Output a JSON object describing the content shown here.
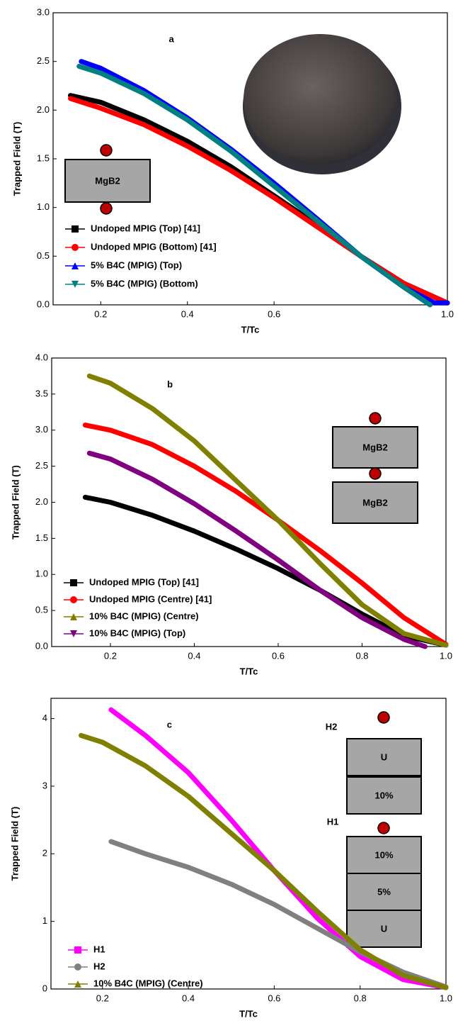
{
  "chart_data": [
    {
      "type": "line",
      "label": "a",
      "xlabel": "T/Tc",
      "ylabel": "Trapped Field (T)",
      "xlim": [
        0.09,
        1.0
      ],
      "ylim": [
        0,
        3.0
      ],
      "xticks": [
        0.2,
        0.4,
        0.6,
        {
          "value": 1.0,
          "label": "1.0"
        }
      ],
      "yticks": [
        {
          "value": 0,
          "label": "0.0"
        },
        0.5,
        {
          "value": 1,
          "label": "1.0"
        },
        1.5,
        {
          "value": 2,
          "label": "2.0"
        },
        2.5,
        {
          "value": 3,
          "label": "3.0"
        }
      ],
      "legend": "lower left",
      "inset_text": [
        "MgB2"
      ],
      "series": [
        {
          "name": "Undoped MPIG (Top) [41]",
          "color": "#000000",
          "marker": "square",
          "x": [
            0.13,
            0.2,
            0.3,
            0.4,
            0.5,
            0.6,
            0.7,
            0.8,
            0.9,
            1.0
          ],
          "values": [
            2.15,
            2.08,
            1.9,
            1.68,
            1.42,
            1.12,
            0.82,
            0.5,
            0.22,
            0.02
          ]
        },
        {
          "name": "Undoped MPIG (Bottom) [41]",
          "color": "#ff0000",
          "marker": "circle",
          "x": [
            0.13,
            0.2,
            0.3,
            0.4,
            0.5,
            0.6,
            0.7,
            0.8,
            0.9,
            1.0
          ],
          "values": [
            2.12,
            2.02,
            1.85,
            1.63,
            1.38,
            1.1,
            0.8,
            0.5,
            0.22,
            0.02
          ]
        },
        {
          "name": "5% B4C (MPIG) (Top)",
          "color": "#0000ff",
          "marker": "triangle-up",
          "x": [
            0.155,
            0.2,
            0.3,
            0.4,
            0.5,
            0.6,
            0.7,
            0.8,
            0.9,
            0.97,
            1.0
          ],
          "values": [
            2.5,
            2.43,
            2.2,
            1.92,
            1.6,
            1.25,
            0.88,
            0.5,
            0.18,
            0.02,
            0.02
          ]
        },
        {
          "name": "5% B4C (MPIG) (Bottom)",
          "color": "#008080",
          "marker": "triangle-down",
          "x": [
            0.15,
            0.2,
            0.3,
            0.4,
            0.5,
            0.6,
            0.7,
            0.8,
            0.9,
            0.96
          ],
          "values": [
            2.45,
            2.38,
            2.17,
            1.9,
            1.58,
            1.22,
            0.86,
            0.5,
            0.18,
            0.0
          ]
        }
      ]
    },
    {
      "type": "line",
      "label": "b",
      "xlabel": "T/Tc",
      "ylabel": "Trapped Field (T)",
      "xlim": [
        0.06,
        1.0
      ],
      "ylim": [
        0,
        4.0
      ],
      "xticks": [
        0.2,
        0.4,
        0.6,
        0.8,
        {
          "value": 1.0,
          "label": "1.0"
        }
      ],
      "yticks": [
        {
          "value": 0,
          "label": "0.0"
        },
        0.5,
        {
          "value": 1,
          "label": "1.0"
        },
        1.5,
        {
          "value": 2,
          "label": "2.0"
        },
        2.5,
        {
          "value": 3,
          "label": "3.0"
        },
        3.5,
        {
          "value": 4,
          "label": "4.0"
        }
      ],
      "legend": "lower left",
      "inset_text": [
        "MgB2",
        "MgB2"
      ],
      "series": [
        {
          "name": "Undoped MPIG (Top) [41]",
          "color": "#000000",
          "marker": "square",
          "x": [
            0.14,
            0.2,
            0.3,
            0.4,
            0.5,
            0.6,
            0.7,
            0.8,
            0.9,
            1.0
          ],
          "values": [
            2.07,
            2.0,
            1.82,
            1.6,
            1.35,
            1.08,
            0.78,
            0.45,
            0.15,
            0.02
          ]
        },
        {
          "name": "Undoped MPIG (Centre) [41]",
          "color": "#ff0000",
          "marker": "circle",
          "x": [
            0.14,
            0.2,
            0.3,
            0.4,
            0.5,
            0.6,
            0.7,
            0.8,
            0.9,
            1.0
          ],
          "values": [
            3.07,
            3.0,
            2.8,
            2.5,
            2.15,
            1.75,
            1.33,
            0.88,
            0.4,
            0.03
          ]
        },
        {
          "name": "10% B4C (MPIG) (Centre)",
          "color": "#808000",
          "marker": "triangle-up",
          "x": [
            0.15,
            0.2,
            0.3,
            0.4,
            0.5,
            0.6,
            0.7,
            0.8,
            0.9,
            1.0
          ],
          "values": [
            3.75,
            3.65,
            3.3,
            2.85,
            2.3,
            1.75,
            1.15,
            0.58,
            0.18,
            0.02
          ]
        },
        {
          "name": "10% B4C (MPIG) (Top)",
          "color": "#800080",
          "marker": "triangle-down",
          "x": [
            0.15,
            0.2,
            0.3,
            0.4,
            0.5,
            0.6,
            0.7,
            0.8,
            0.9,
            0.95
          ],
          "values": [
            2.68,
            2.6,
            2.32,
            1.98,
            1.6,
            1.2,
            0.78,
            0.4,
            0.1,
            0.0
          ]
        }
      ]
    },
    {
      "type": "line",
      "label": "c",
      "xlabel": "T/Tc",
      "ylabel": "Trapped Field (T)",
      "xlim": [
        0.08,
        1.0
      ],
      "ylim": [
        0,
        4.3
      ],
      "xticks": [
        0.2,
        0.4,
        0.6,
        0.8,
        {
          "value": 1.0,
          "label": "1.0"
        }
      ],
      "yticks": [
        0,
        1,
        2,
        3,
        4
      ],
      "legend": "lower left",
      "inset_text": [
        "H2",
        "U",
        "10%",
        "H1",
        "10%",
        "5%",
        "U"
      ],
      "series": [
        {
          "name": "H1",
          "color": "#ff00ff",
          "marker": "square",
          "x": [
            0.22,
            0.3,
            0.4,
            0.5,
            0.6,
            0.7,
            0.8,
            0.9,
            1.0
          ],
          "values": [
            4.13,
            3.75,
            3.2,
            2.5,
            1.75,
            1.05,
            0.48,
            0.14,
            0.02
          ]
        },
        {
          "name": "H2",
          "color": "#808080",
          "marker": "circle",
          "x": [
            0.22,
            0.3,
            0.4,
            0.5,
            0.6,
            0.7,
            0.8,
            0.9,
            1.0
          ],
          "values": [
            2.18,
            2.0,
            1.8,
            1.55,
            1.25,
            0.9,
            0.55,
            0.25,
            0.03
          ]
        },
        {
          "name": "10% B4C (MPIG) (Centre)",
          "color": "#808000",
          "marker": "triangle-up",
          "x": [
            0.15,
            0.2,
            0.3,
            0.4,
            0.5,
            0.6,
            0.7,
            0.8,
            0.9,
            1.0
          ],
          "values": [
            3.75,
            3.65,
            3.3,
            2.85,
            2.3,
            1.75,
            1.15,
            0.58,
            0.2,
            0.02
          ]
        }
      ]
    }
  ]
}
